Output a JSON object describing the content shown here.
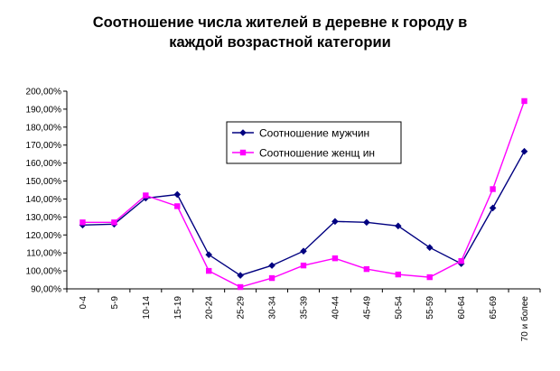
{
  "chart_data": {
    "type": "line",
    "title_lines": [
      "Соотношение числа жителей в деревне к городу в",
      "каждой возрастной категории"
    ],
    "categories": [
      "0-4",
      "5-9",
      "10-14",
      "15-19",
      "20-24",
      "25-29",
      "30-34",
      "35-39",
      "40-44",
      "45-49",
      "50-54",
      "55-59",
      "60-64",
      "65-69",
      "70 и более"
    ],
    "series": [
      {
        "name": "Соотношение мужчин",
        "color": "#000080",
        "marker": "diamond",
        "values": [
          125.5,
          126.0,
          140.5,
          142.5,
          109.0,
          97.5,
          103.0,
          111.0,
          127.5,
          127.0,
          125.0,
          113.0,
          104.0,
          135.0,
          166.5
        ]
      },
      {
        "name": "Соотношение женщ ин",
        "color": "#ff00ff",
        "marker": "square",
        "values": [
          127.0,
          127.0,
          142.0,
          136.0,
          100.0,
          91.0,
          96.0,
          103.0,
          107.0,
          101.0,
          98.0,
          96.5,
          105.5,
          145.5,
          194.5
        ]
      }
    ],
    "ylim": [
      90,
      200
    ],
    "yticks": [
      "90,00%",
      "100,00%",
      "110,00%",
      "120,00%",
      "130,00%",
      "140,00%",
      "150,00%",
      "160,00%",
      "170,00%",
      "180,00%",
      "190,00%",
      "200,00%"
    ],
    "grid": false,
    "legend_position": "upper-middle"
  }
}
